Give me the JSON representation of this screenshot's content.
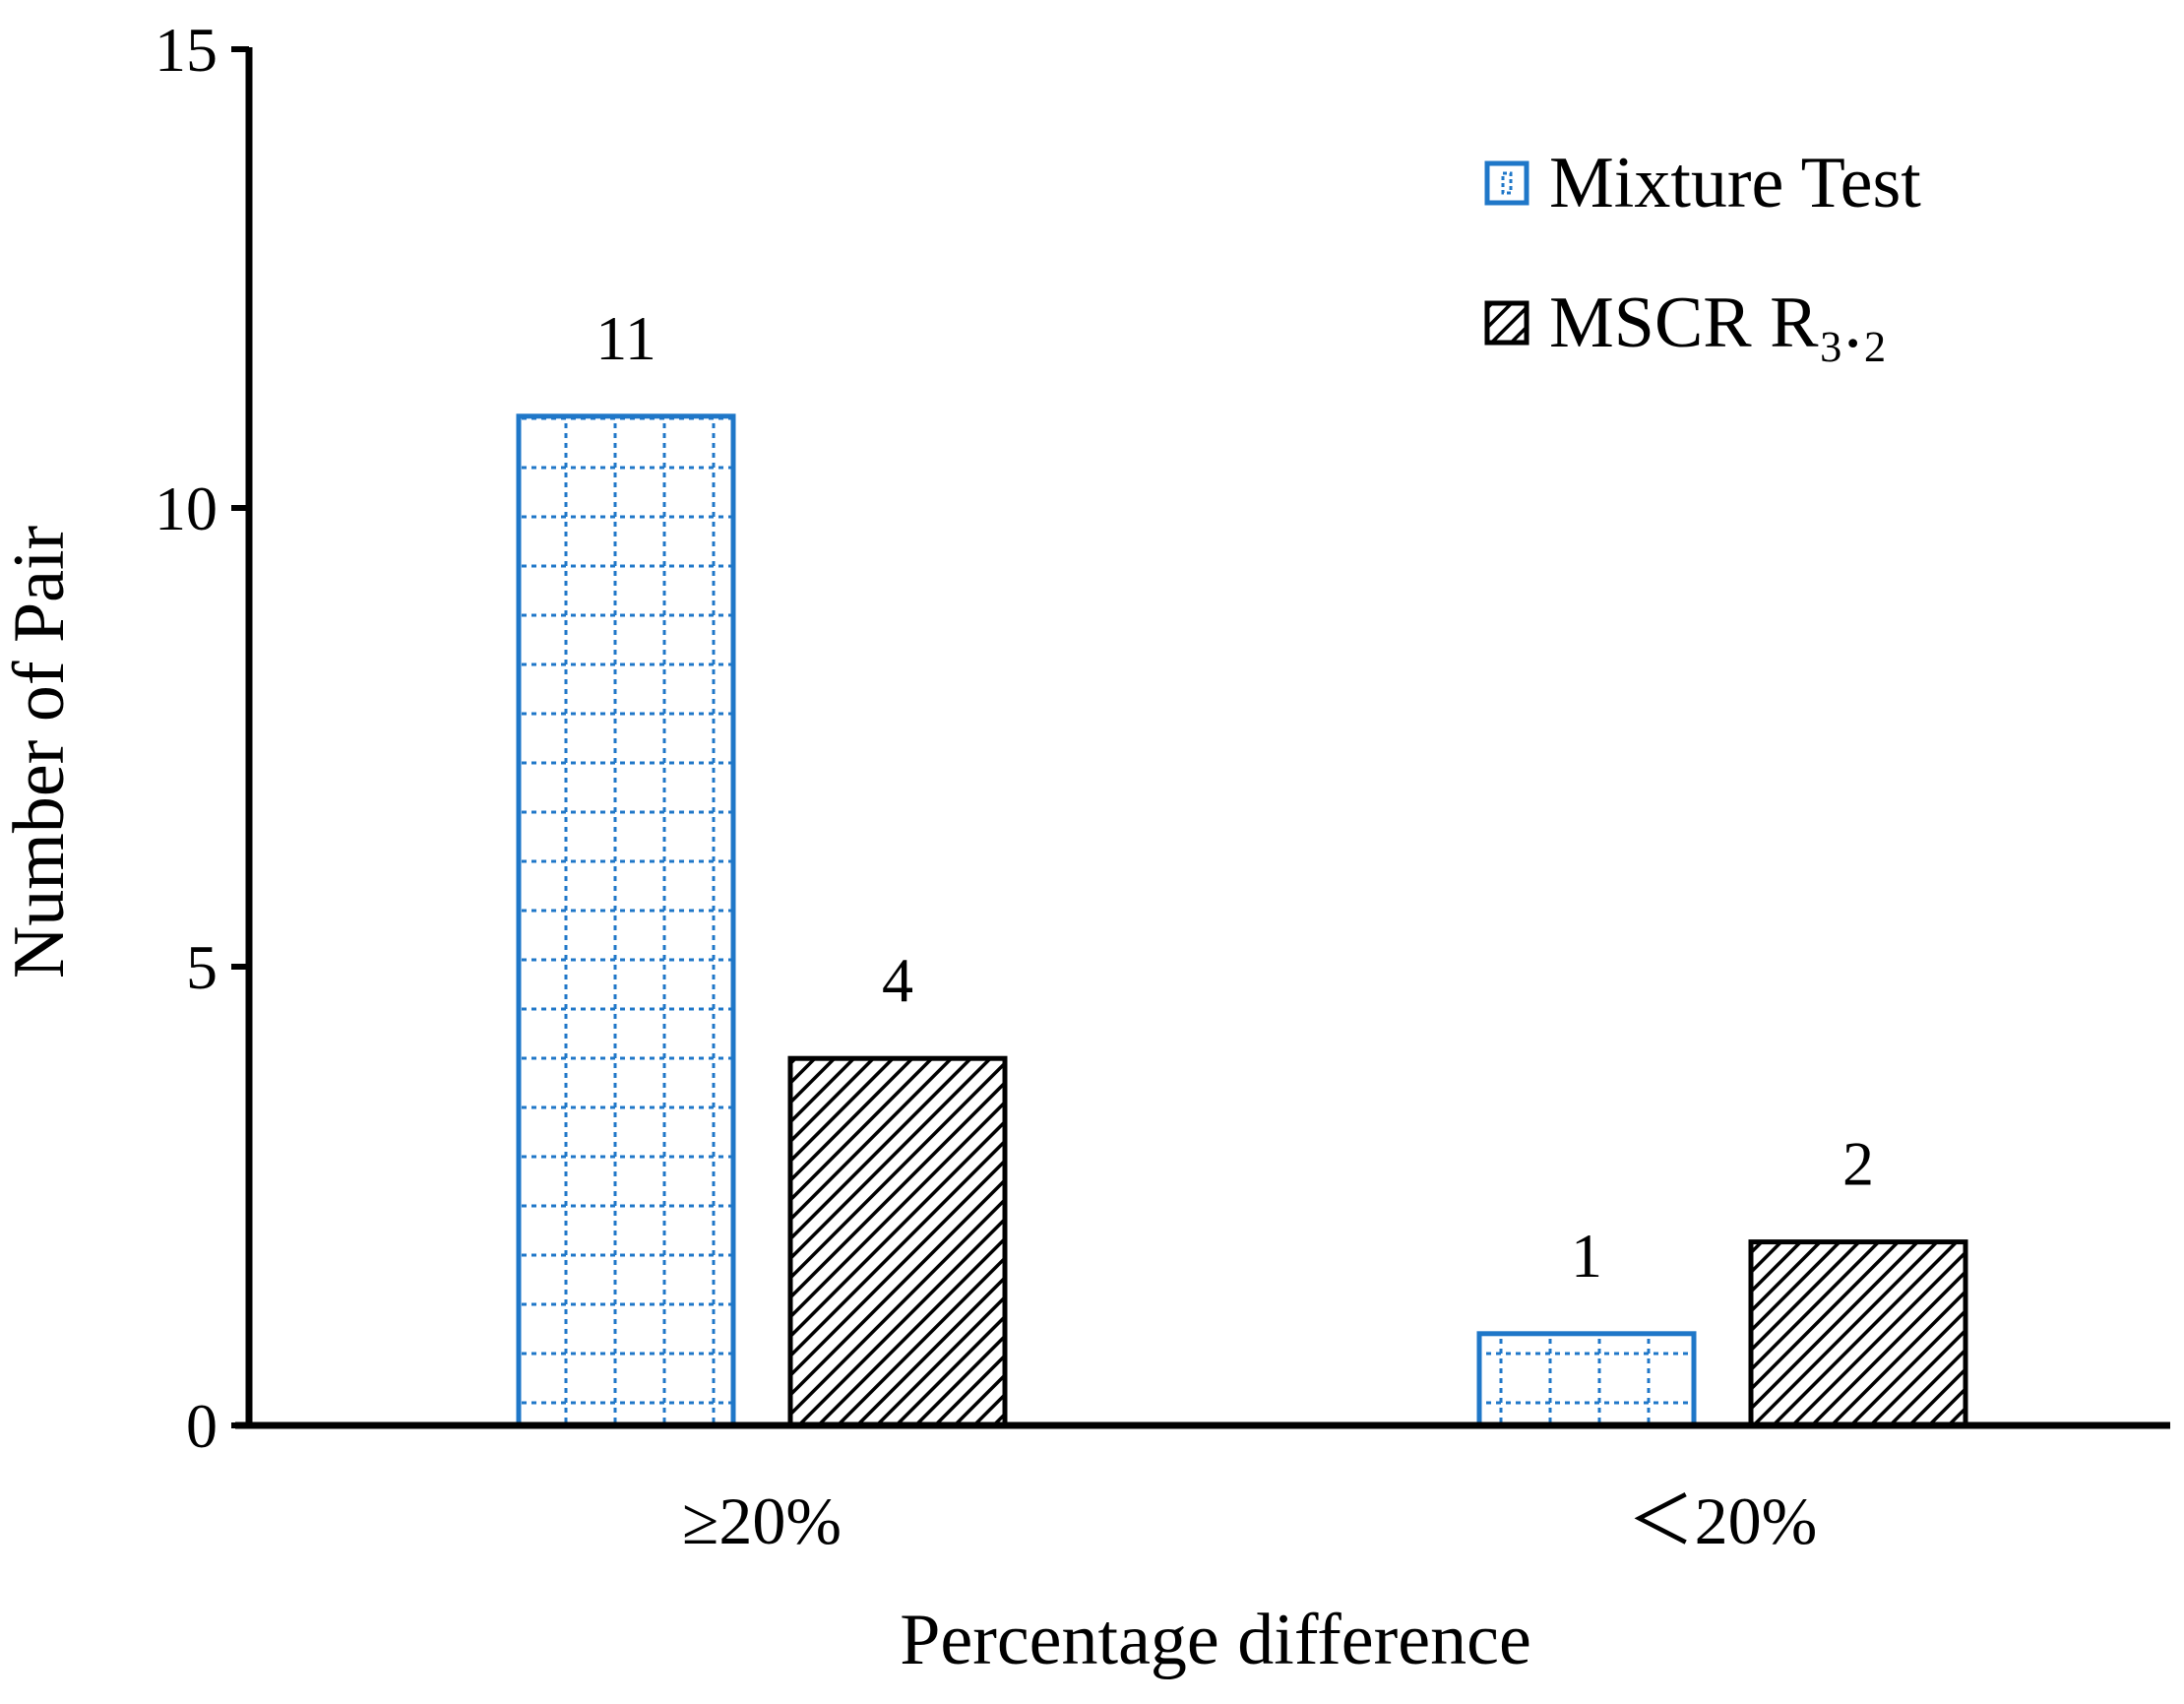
{
  "chart_data": {
    "type": "bar",
    "title": "",
    "xlabel": "Percentage difference",
    "ylabel": "Number of Pair",
    "categories": [
      "≥20%",
      "＜20%"
    ],
    "ylim": [
      0,
      15
    ],
    "yticks": [
      0,
      5,
      10,
      15
    ],
    "grid": false,
    "legend_position": "top-right",
    "series": [
      {
        "name": "Mixture Test",
        "values": [
          11,
          1
        ],
        "color": "#1f77c8",
        "pattern": "dotted-grid"
      },
      {
        "name": "MSCR R₃.₂",
        "values": [
          4,
          2
        ],
        "color": "#000000",
        "pattern": "diagonal-hatch"
      }
    ],
    "data_labels": [
      [
        "11",
        "1"
      ],
      [
        "4",
        "2"
      ]
    ]
  }
}
